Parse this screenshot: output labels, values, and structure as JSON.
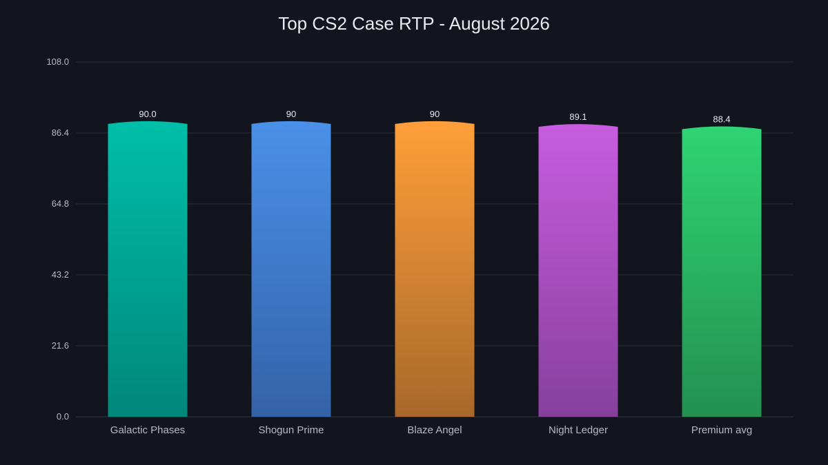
{
  "chart_data": {
    "type": "bar",
    "title": "Top CS2 Case RTP - August 2026",
    "xlabel": "",
    "ylabel": "",
    "ylim": [
      0,
      108
    ],
    "y_ticks": [
      {
        "value": 0,
        "label": "0.0"
      },
      {
        "value": 21.6,
        "label": "21.6"
      },
      {
        "value": 43.2,
        "label": "43.2"
      },
      {
        "value": 64.8,
        "label": "64.8"
      },
      {
        "value": 86.4,
        "label": "86.4"
      },
      {
        "value": 108,
        "label": "108.0"
      }
    ],
    "grid": true,
    "categories": [
      "Galactic Phases",
      "Shogun Prime",
      "Blaze Angel",
      "Night Ledger",
      "Premium avg"
    ],
    "values": [
      90.0,
      90,
      90,
      89.1,
      88.4
    ],
    "data_labels": [
      "90.0",
      "90",
      "90",
      "89.1",
      "88.4"
    ],
    "colors": [
      {
        "top": "#00bfa8",
        "bottom": "#00877a"
      },
      {
        "top": "#4a90e8",
        "bottom": "#3462a8"
      },
      {
        "top": "#ff9f3a",
        "bottom": "#a8682a"
      },
      {
        "top": "#c85ce0",
        "bottom": "#86409c"
      },
      {
        "top": "#2fd474",
        "bottom": "#239050"
      }
    ],
    "background": "#12151d"
  }
}
